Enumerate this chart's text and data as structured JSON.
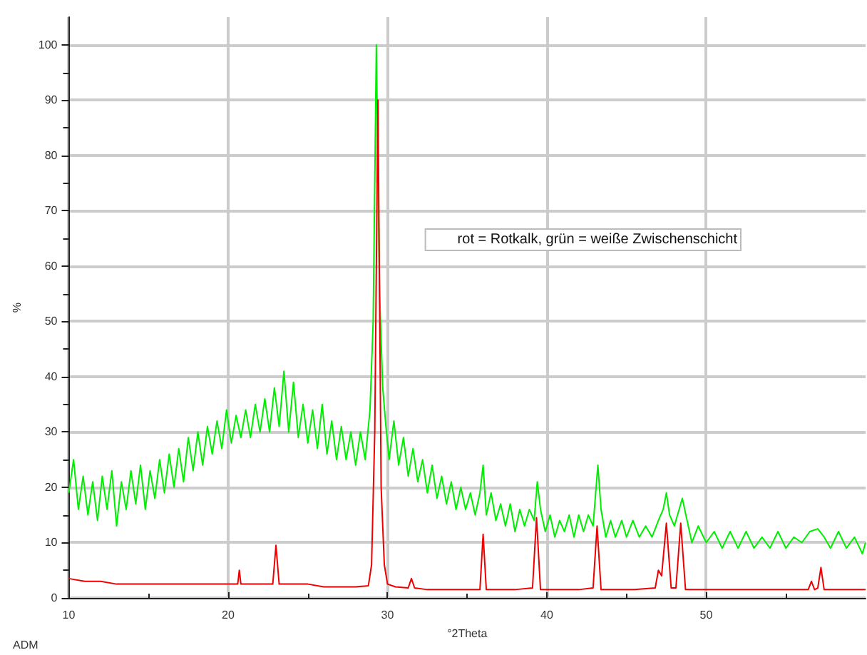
{
  "chart_data": {
    "type": "line",
    "xlabel": "°2Theta",
    "ylabel": "%",
    "annotations": [
      "rot = Rotkalk, grün = weiße Zwischenschicht",
      "ADM"
    ],
    "xlim": [
      10,
      60
    ],
    "xticks": [
      10,
      20,
      30,
      40,
      50
    ],
    "ylim": [
      0,
      105
    ],
    "yticks": [
      0,
      10,
      20,
      30,
      40,
      50,
      60,
      70,
      80,
      90,
      100
    ],
    "grid": true,
    "marker": "none",
    "line_style": "solid",
    "series": [
      {
        "color": "#00ee00",
        "x": [
          10,
          10.3,
          10.6,
          10.9,
          11.2,
          11.5,
          11.8,
          12.1,
          12.4,
          12.7,
          13.0,
          13.3,
          13.6,
          13.9,
          14.2,
          14.5,
          14.8,
          15.1,
          15.4,
          15.7,
          16.0,
          16.3,
          16.6,
          16.9,
          17.2,
          17.5,
          17.8,
          18.1,
          18.4,
          18.7,
          19.0,
          19.3,
          19.6,
          19.9,
          20.2,
          20.5,
          20.8,
          21.1,
          21.4,
          21.7,
          22.0,
          22.3,
          22.6,
          22.9,
          23.2,
          23.5,
          23.8,
          24.1,
          24.4,
          24.7,
          25.0,
          25.3,
          25.6,
          25.9,
          26.2,
          26.5,
          26.8,
          27.1,
          27.4,
          27.7,
          28.0,
          28.3,
          28.6,
          28.9,
          29.1,
          29.3,
          29.5,
          29.7,
          29.9,
          30.1,
          30.4,
          30.7,
          31.0,
          31.3,
          31.6,
          31.9,
          32.2,
          32.5,
          32.8,
          33.1,
          33.4,
          33.7,
          34.0,
          34.3,
          34.6,
          34.9,
          35.2,
          35.5,
          35.8,
          36.0,
          36.2,
          36.5,
          36.8,
          37.1,
          37.4,
          37.7,
          38.0,
          38.3,
          38.6,
          38.9,
          39.2,
          39.4,
          39.6,
          39.9,
          40.2,
          40.5,
          40.8,
          41.1,
          41.4,
          41.7,
          42.0,
          42.3,
          42.6,
          42.9,
          43.2,
          43.4,
          43.7,
          44.0,
          44.3,
          44.7,
          45.0,
          45.4,
          45.8,
          46.2,
          46.6,
          47.0,
          47.3,
          47.5,
          47.7,
          48.0,
          48.2,
          48.5,
          48.8,
          49.1,
          49.5,
          50.0,
          50.5,
          51.0,
          51.5,
          52.0,
          52.5,
          53.0,
          53.5,
          54.0,
          54.5,
          55.0,
          55.5,
          56.0,
          56.5,
          57.0,
          57.4,
          57.8,
          58.3,
          58.8,
          59.3,
          59.8,
          60
        ],
        "values": [
          19,
          25,
          16,
          22,
          15,
          21,
          14,
          22,
          16,
          23,
          13,
          21,
          16,
          23,
          17,
          24,
          16,
          23,
          18,
          25,
          19,
          26,
          20,
          27,
          21,
          29,
          23,
          30,
          24,
          31,
          26,
          32,
          27,
          34,
          28,
          33,
          29,
          34,
          29,
          35,
          30,
          36,
          30,
          38,
          31,
          41,
          30,
          39,
          29,
          35,
          28,
          34,
          27,
          35,
          26,
          32,
          25,
          31,
          25,
          30,
          24,
          30,
          25,
          34,
          50,
          100,
          55,
          38,
          31,
          25,
          32,
          24,
          29,
          22,
          27,
          21,
          25,
          19,
          24,
          18,
          22,
          17,
          21,
          16,
          20,
          16,
          19,
          15,
          19,
          24,
          15,
          19,
          14,
          17,
          13,
          17,
          12,
          16,
          13,
          16,
          14,
          21,
          16,
          12,
          15,
          11,
          14,
          12,
          15,
          11,
          15,
          12,
          15,
          13,
          24,
          16,
          11,
          14,
          11,
          14,
          11,
          14,
          11,
          13,
          11,
          14,
          16,
          19,
          15,
          13,
          15,
          18,
          14,
          10,
          13,
          10,
          12,
          9,
          12,
          9,
          12,
          9,
          11,
          9,
          12,
          9,
          11,
          10,
          12,
          12.5,
          11,
          9,
          12,
          9,
          11,
          8,
          10
        ]
      },
      {
        "color": "#ee0000",
        "x": [
          10,
          11,
          12,
          13,
          14,
          15,
          16,
          17,
          18,
          19,
          20,
          20.6,
          20.7,
          20.8,
          21.5,
          22.5,
          22.8,
          23.0,
          23.2,
          24,
          25,
          26,
          27,
          28,
          28.8,
          29.0,
          29.2,
          29.4,
          29.6,
          29.8,
          30.0,
          30.5,
          31.3,
          31.5,
          31.7,
          32.5,
          34,
          35.8,
          36.0,
          36.2,
          37,
          38,
          39.1,
          39.35,
          39.6,
          40.5,
          42,
          42.9,
          43.15,
          43.4,
          44,
          45.5,
          46.8,
          47.0,
          47.2,
          47.5,
          47.8,
          48.1,
          48.4,
          48.7,
          49.5,
          51,
          53,
          55,
          56.4,
          56.6,
          56.8,
          57.0,
          57.2,
          57.4,
          58,
          59,
          60
        ],
        "values": [
          3.5,
          3,
          3,
          2.5,
          2.5,
          2.5,
          2.5,
          2.5,
          2.5,
          2.5,
          2.5,
          2.5,
          5,
          2.5,
          2.5,
          2.5,
          2.5,
          9.5,
          2.5,
          2.5,
          2.5,
          2,
          2,
          2,
          2.2,
          6,
          30,
          90,
          20,
          6,
          2.5,
          2,
          1.8,
          3.5,
          1.8,
          1.5,
          1.5,
          1.5,
          11.5,
          1.5,
          1.5,
          1.5,
          1.8,
          14.5,
          1.5,
          1.5,
          1.5,
          1.8,
          13,
          1.5,
          1.5,
          1.5,
          1.8,
          5,
          4,
          13.5,
          1.8,
          1.8,
          13.5,
          1.5,
          1.5,
          1.5,
          1.5,
          1.5,
          1.5,
          3,
          1.5,
          1.8,
          5.5,
          1.5,
          1.5,
          1.5,
          1.5
        ]
      }
    ]
  }
}
